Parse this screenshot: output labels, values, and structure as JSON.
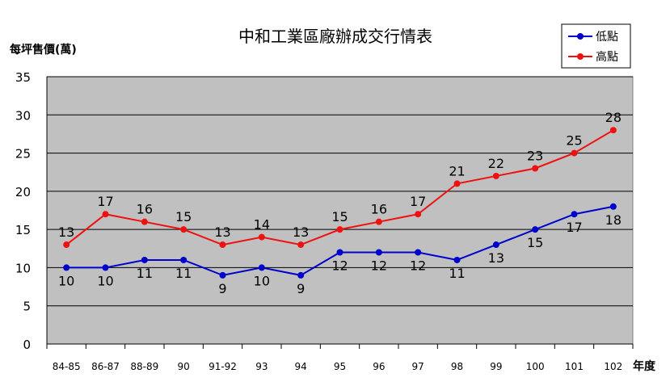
{
  "chart_data": {
    "type": "line",
    "title": "中和工業區廠辦成交行情表",
    "ylabel": "每坪售價(萬)",
    "xlabel": "年度",
    "ylim": [
      0,
      35
    ],
    "yticks": [
      0,
      5,
      10,
      15,
      20,
      25,
      30,
      35
    ],
    "grid": true,
    "legend_position": "top-right",
    "categories": [
      "84-85",
      "86-87",
      "88-89",
      "90",
      "91-92",
      "93",
      "94",
      "95",
      "96",
      "97",
      "98",
      "99",
      "100",
      "101",
      "102"
    ],
    "series": [
      {
        "name": "低點",
        "color": "#0000cc",
        "values": [
          10,
          10,
          11,
          11,
          9,
          10,
          9,
          12,
          12,
          12,
          11,
          13,
          15,
          17,
          18
        ]
      },
      {
        "name": "高點",
        "color": "#ee1111",
        "values": [
          13,
          17,
          16,
          15,
          13,
          14,
          13,
          15,
          16,
          17,
          21,
          22,
          23,
          25,
          28
        ]
      }
    ],
    "plot_background": "#c0c0c0"
  }
}
